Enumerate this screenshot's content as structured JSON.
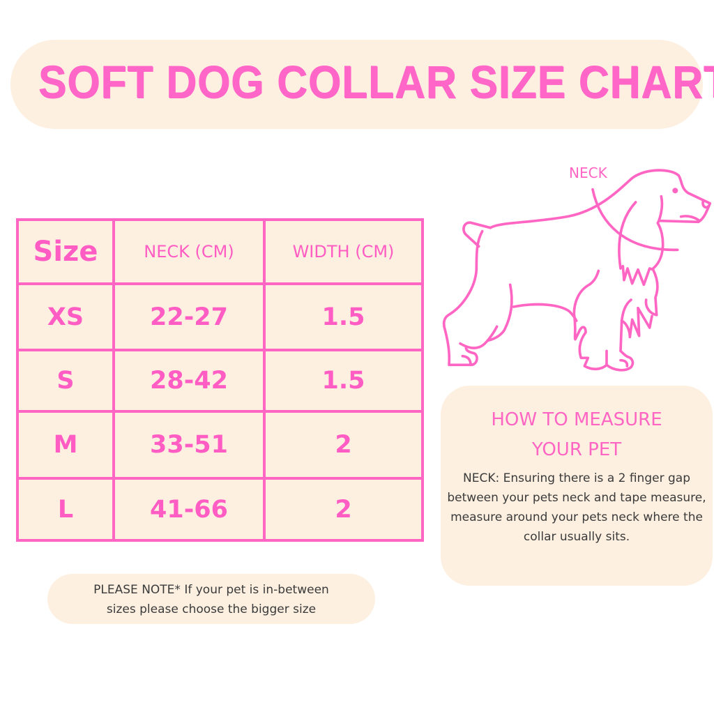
{
  "title": "SOFT DOG COLLAR SIZE CHART",
  "diagram": {
    "neck_label": "NECK",
    "icon": "dog-outline"
  },
  "table": {
    "headers": [
      "Size",
      "NECK (CM)",
      "WIDTH (CM)"
    ],
    "rows": [
      [
        "XS",
        "22-27",
        "1.5"
      ],
      [
        "S",
        "28-42",
        "1.5"
      ],
      [
        "M",
        "33-51",
        "2"
      ],
      [
        "L",
        "41-66",
        "2"
      ]
    ]
  },
  "measure": {
    "heading_line1": "HOW TO MEASURE",
    "heading_line2": "YOUR PET",
    "body": "NECK: Ensuring there is a 2 finger gap between your pets neck and tape measure, measure around your pets neck where the collar usually sits."
  },
  "note": {
    "line1": "PLEASE NOTE* If your pet is in-between",
    "line2": "sizes please choose the bigger size"
  },
  "colors": {
    "accent": "#ff66c4",
    "panel": "#fdf0e1",
    "text": "#3a3a3a"
  }
}
